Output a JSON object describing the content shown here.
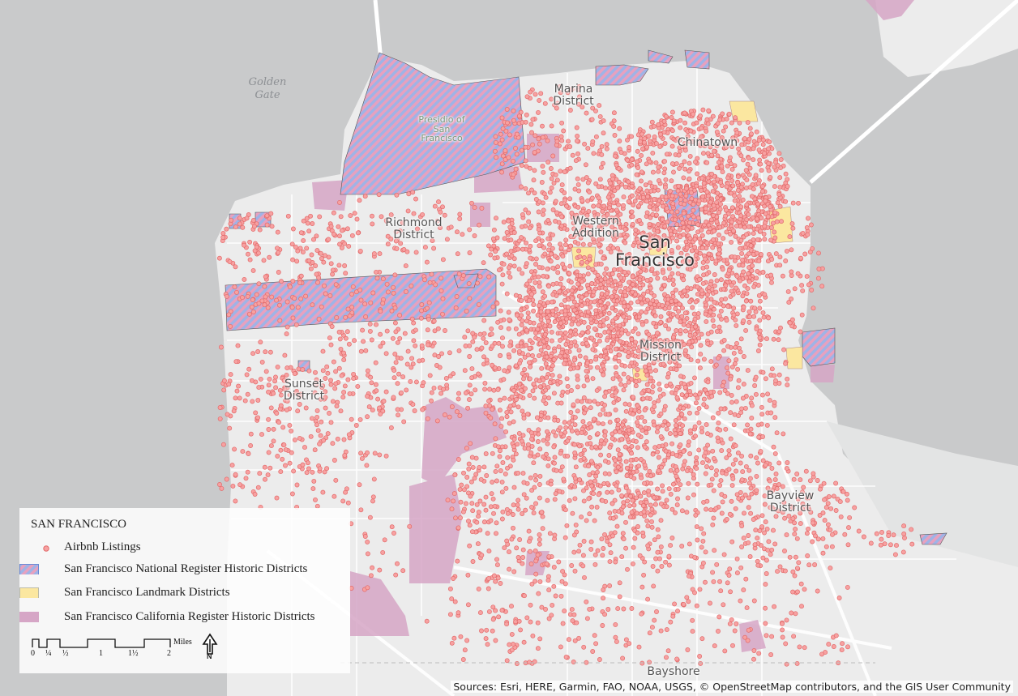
{
  "map": {
    "labels": {
      "golden_gate": "Golden\nGate",
      "presidio": "Presidio of\nSan\nFrancisco",
      "marina": "Marina\nDistrict",
      "chinatown": "Chinatown",
      "richmond": "Richmond\nDistrict",
      "western_addition": "Western\nAddition",
      "san_francisco": "San\nFrancisco",
      "mission": "Mission\nDistrict",
      "sunset": "Sunset\nDistrict",
      "bayview": "Bayview\nDistrict",
      "bayshore": "Bayshore"
    },
    "colors": {
      "water": "#c9cacb",
      "land": "#ececec",
      "road": "#ffffff",
      "airbnb_fill": "#f7a1a1",
      "airbnb_stroke": "#e26a6a",
      "national_hatch_a": "#9fb3e6",
      "national_hatch_b": "#e7a1bf",
      "landmark": "#fbe7a0",
      "california": "#d6a6c6"
    }
  },
  "legend": {
    "title": "SAN FRANCISCO",
    "items": [
      {
        "label": "Airbnb Listings",
        "symbol": "dot"
      },
      {
        "label": "San Francisco National Register Historic Districts",
        "symbol": "hatch"
      },
      {
        "label": "San Francisco Landmark Districts",
        "symbol": "yellow"
      },
      {
        "label": "San Francisco California Register Historic Districts",
        "symbol": "pink"
      }
    ],
    "scale": {
      "ticks": [
        "0",
        "¼",
        "½",
        "1",
        "1½",
        "2"
      ],
      "unit": "Miles"
    },
    "north_arrow": "N"
  },
  "attribution": "Sources: Esri, HERE, Garmin, FAO, NOAA, USGS, © OpenStreetMap contributors, and the GIS User Community"
}
